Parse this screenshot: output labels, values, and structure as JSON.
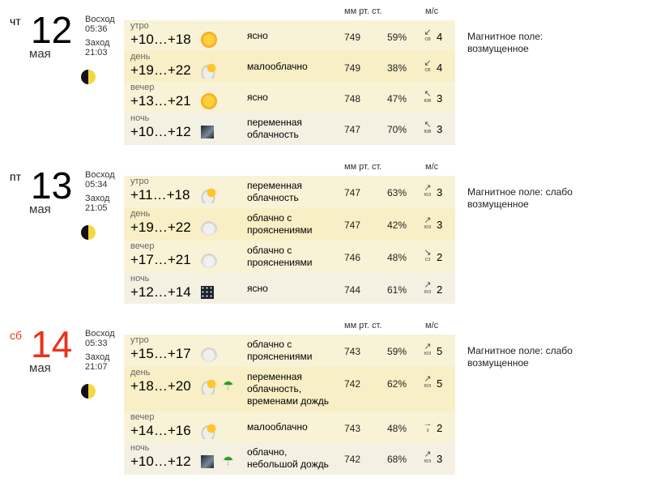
{
  "headers": {
    "pressure": "мм рт. ст.",
    "wind": "м/с"
  },
  "days": [
    {
      "dow": "чт",
      "num": "12",
      "month": "мая",
      "weekend": false,
      "sunrise_label": "Восход",
      "sunrise": "05:36",
      "sunset_label": "Заход",
      "sunset": "21:03",
      "magnetic": "Магнитное поле: возмущенное",
      "rows": [
        {
          "part": "утро",
          "temp": "+10…+18",
          "icon": "sun",
          "desc": "ясно",
          "pressure": "749",
          "humidity": "59%",
          "wind_arrow": "↙",
          "wind_dir": "св",
          "wind_speed": "4"
        },
        {
          "part": "день",
          "temp": "+19…+22",
          "icon": "cloud-sun",
          "desc": "малооблачно",
          "pressure": "749",
          "humidity": "38%",
          "wind_arrow": "↙",
          "wind_dir": "св",
          "wind_speed": "4"
        },
        {
          "part": "вечер",
          "temp": "+13…+21",
          "icon": "sun",
          "desc": "ясно",
          "pressure": "748",
          "humidity": "47%",
          "wind_arrow": "↖",
          "wind_dir": "юв",
          "wind_speed": "3"
        },
        {
          "part": "ночь",
          "temp": "+10…+12",
          "icon": "night-cloudy",
          "desc": "переменная облачность",
          "pressure": "747",
          "humidity": "70%",
          "wind_arrow": "↖",
          "wind_dir": "юв",
          "wind_speed": "3"
        }
      ]
    },
    {
      "dow": "пт",
      "num": "13",
      "month": "мая",
      "weekend": false,
      "sunrise_label": "Восход",
      "sunrise": "05:34",
      "sunset_label": "Заход",
      "sunset": "21:05",
      "magnetic": "Магнитное поле: слабо возмущенное",
      "rows": [
        {
          "part": "утро",
          "temp": "+11…+18",
          "icon": "cloud-sun",
          "desc": "переменная облачность",
          "pressure": "747",
          "humidity": "63%",
          "wind_arrow": "↗",
          "wind_dir": "юз",
          "wind_speed": "3"
        },
        {
          "part": "день",
          "temp": "+19…+22",
          "icon": "cloud",
          "desc": "облачно с прояснениями",
          "pressure": "747",
          "humidity": "42%",
          "wind_arrow": "↗",
          "wind_dir": "юз",
          "wind_speed": "3"
        },
        {
          "part": "вечер",
          "temp": "+17…+21",
          "icon": "cloud",
          "desc": "облачно с прояснениями",
          "pressure": "746",
          "humidity": "48%",
          "wind_arrow": "↘",
          "wind_dir": "сз",
          "wind_speed": "2"
        },
        {
          "part": "ночь",
          "temp": "+12…+14",
          "icon": "night-clear",
          "desc": "ясно",
          "pressure": "744",
          "humidity": "61%",
          "wind_arrow": "↗",
          "wind_dir": "юз",
          "wind_speed": "2"
        }
      ]
    },
    {
      "dow": "сб",
      "num": "14",
      "month": "мая",
      "weekend": true,
      "sunrise_label": "Восход",
      "sunrise": "05:33",
      "sunset_label": "Заход",
      "sunset": "21:07",
      "magnetic": "Магнитное поле: слабо возмущенное",
      "rows": [
        {
          "part": "утро",
          "temp": "+15…+17",
          "icon": "cloud",
          "desc": "облачно с прояснениями",
          "pressure": "743",
          "humidity": "59%",
          "wind_arrow": "↗",
          "wind_dir": "юз",
          "wind_speed": "5"
        },
        {
          "part": "день",
          "temp": "+18…+20",
          "icon": "cloud-sun",
          "rain": true,
          "desc": "переменная облачность, временами дождь",
          "pressure": "742",
          "humidity": "62%",
          "wind_arrow": "↗",
          "wind_dir": "юз",
          "wind_speed": "5"
        },
        {
          "part": "вечер",
          "temp": "+14…+16",
          "icon": "cloud-sun",
          "desc": "малооблачно",
          "pressure": "743",
          "humidity": "48%",
          "wind_arrow": "→",
          "wind_dir": "з",
          "wind_speed": "2"
        },
        {
          "part": "ночь",
          "temp": "+10…+12",
          "icon": "night-cloudy",
          "rain": true,
          "desc": "облачно, небольшой дождь",
          "pressure": "742",
          "humidity": "68%",
          "wind_arrow": "↗",
          "wind_dir": "юз",
          "wind_speed": "3"
        }
      ]
    }
  ]
}
